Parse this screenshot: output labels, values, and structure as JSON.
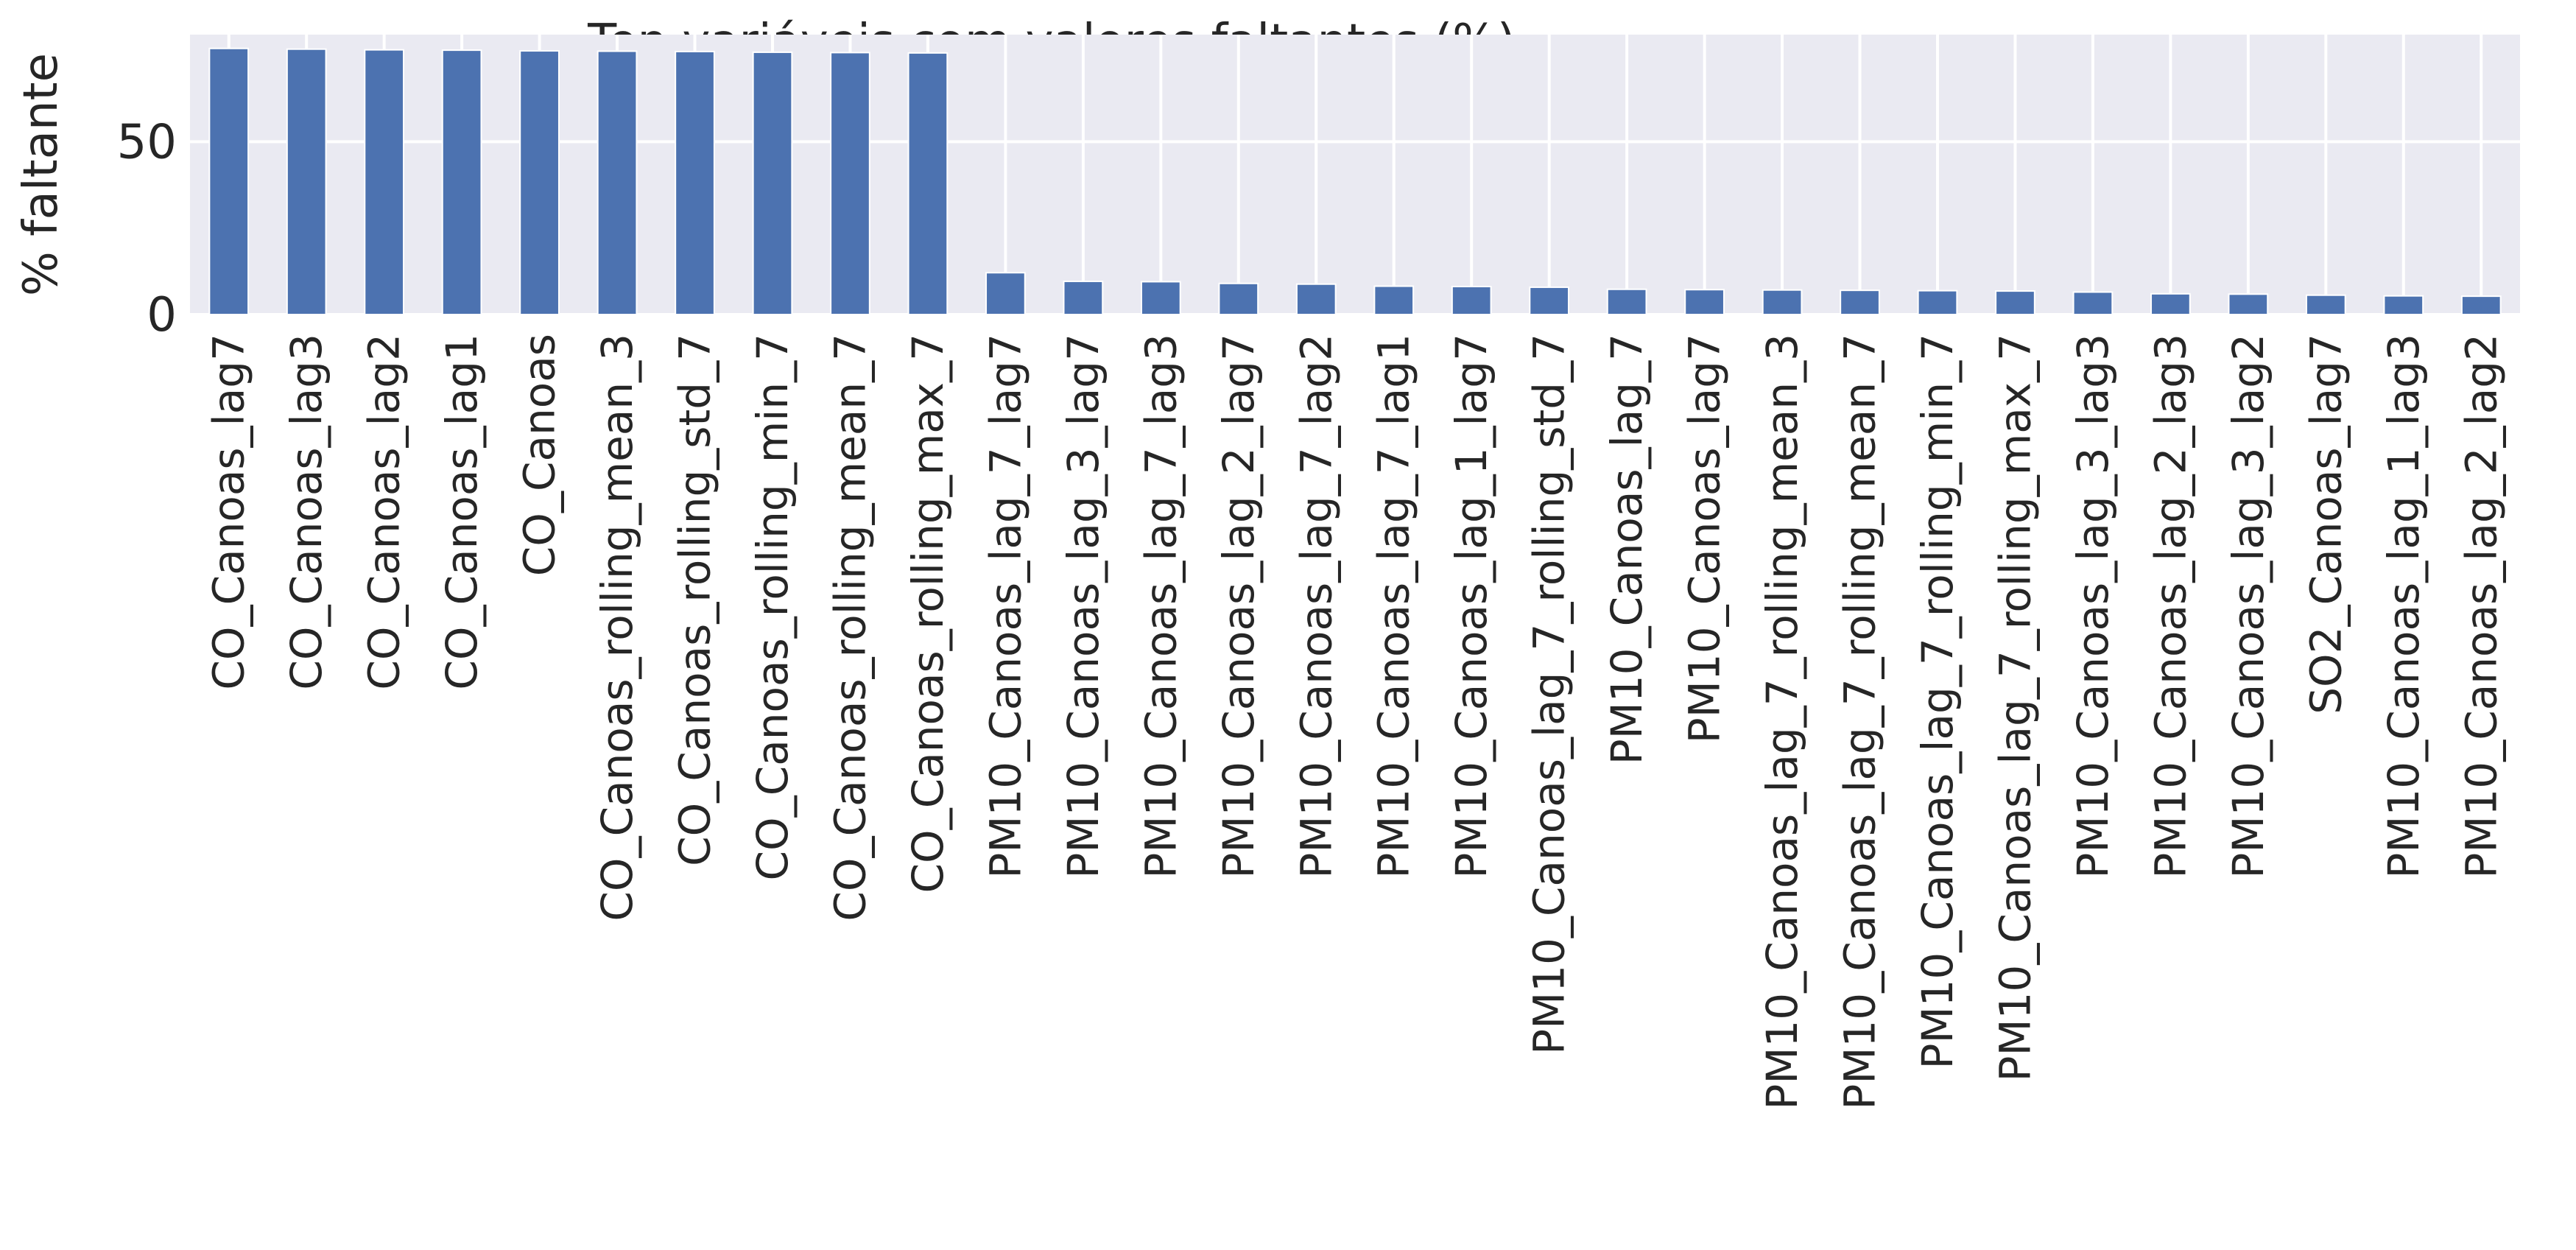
{
  "chart_data": {
    "type": "bar",
    "title": "Top variáveis com valores faltantes (%)",
    "xlabel": "",
    "ylabel": "% faltante",
    "ylim": [
      0,
      81
    ],
    "yticks": [
      0,
      50
    ],
    "grid": true,
    "legend": "none",
    "bar_color": "#4c72b0",
    "background_color": "#eaeaf2",
    "categories": [
      "CO_Canoas_lag7",
      "CO_Canoas_lag3",
      "CO_Canoas_lag2",
      "CO_Canoas_lag1",
      "CO_Canoas",
      "CO_Canoas_rolling_mean_3",
      "CO_Canoas_rolling_std_7",
      "CO_Canoas_rolling_min_7",
      "CO_Canoas_rolling_mean_7",
      "CO_Canoas_rolling_max_7",
      "PM10_Canoas_lag_7_lag7",
      "PM10_Canoas_lag_3_lag7",
      "PM10_Canoas_lag_7_lag3",
      "PM10_Canoas_lag_2_lag7",
      "PM10_Canoas_lag_7_lag2",
      "PM10_Canoas_lag_7_lag1",
      "PM10_Canoas_lag_1_lag7",
      "PM10_Canoas_lag_7_rolling_std_7",
      "PM10_Canoas_lag_7",
      "PM10_Canoas_lag7",
      "PM10_Canoas_lag_7_rolling_mean_3",
      "PM10_Canoas_lag_7_rolling_mean_7",
      "PM10_Canoas_lag_7_rolling_min_7",
      "PM10_Canoas_lag_7_rolling_max_7",
      "PM10_Canoas_lag_3_lag3",
      "PM10_Canoas_lag_2_lag3",
      "PM10_Canoas_lag_3_lag2",
      "SO2_Canoas_lag7",
      "PM10_Canoas_lag_1_lag3",
      "PM10_Canoas_lag_2_lag2"
    ],
    "values": [
      77.0,
      76.8,
      76.6,
      76.5,
      76.3,
      76.2,
      76.1,
      75.9,
      75.8,
      75.7,
      12.1,
      9.6,
      9.5,
      9.0,
      8.8,
      8.2,
      8.1,
      7.9,
      7.3,
      7.2,
      7.1,
      7.0,
      6.9,
      6.8,
      6.5,
      6.0,
      5.9,
      5.6,
      5.4,
      5.3
    ]
  }
}
